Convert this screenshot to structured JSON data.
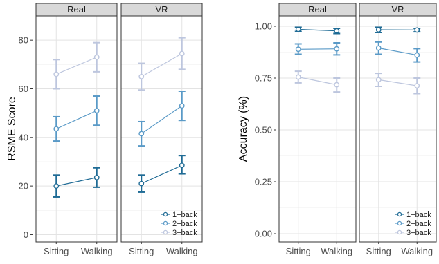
{
  "chart_data": [
    {
      "type": "line",
      "ylabel": "RSME Score",
      "xlabel": "",
      "ylim": [
        -3,
        90
      ],
      "yticks": [
        0,
        20,
        40,
        60,
        80
      ],
      "grid": true,
      "legend_position": "bottom-right",
      "categories": [
        "Sitting",
        "Walking"
      ],
      "panels": [
        {
          "name": "Real",
          "series": [
            {
              "name": "1−back",
              "color": "#1f6b95",
              "values": [
                20,
                23.5
              ],
              "err_low": [
                15.5,
                19.5
              ],
              "err_high": [
                24.5,
                27.5
              ]
            },
            {
              "name": "2−back",
              "color": "#5a9ac7",
              "values": [
                43.5,
                51
              ],
              "err_low": [
                38.5,
                45
              ],
              "err_high": [
                48.5,
                57
              ]
            },
            {
              "name": "3−back",
              "color": "#bdc6de",
              "values": [
                66,
                73
              ],
              "err_low": [
                60,
                67
              ],
              "err_high": [
                72,
                79
              ]
            }
          ]
        },
        {
          "name": "VR",
          "series": [
            {
              "name": "1−back",
              "color": "#1f6b95",
              "values": [
                21,
                28.5
              ],
              "err_low": [
                17.5,
                25
              ],
              "err_high": [
                24.5,
                32.5
              ]
            },
            {
              "name": "2−back",
              "color": "#5a9ac7",
              "values": [
                41.5,
                53
              ],
              "err_low": [
                36.5,
                47
              ],
              "err_high": [
                46.5,
                59
              ]
            },
            {
              "name": "3−back",
              "color": "#bdc6de",
              "values": [
                65,
                74.5
              ],
              "err_low": [
                59.5,
                68
              ],
              "err_high": [
                70.5,
                81
              ]
            }
          ]
        }
      ]
    },
    {
      "type": "line",
      "ylabel": "Accuracy (%)",
      "xlabel": "",
      "ylim": [
        -0.04,
        1.05
      ],
      "yticks": [
        0,
        0.25,
        0.5,
        0.75,
        1
      ],
      "ytick_labels": [
        "0.00",
        "0.25",
        "0.50",
        "0.75",
        "1.00"
      ],
      "grid": true,
      "legend_position": "bottom-right",
      "categories": [
        "Sitting",
        "Walking"
      ],
      "panels": [
        {
          "name": "Real",
          "series": [
            {
              "name": "1−back",
              "color": "#1f6b95",
              "values": [
                0.985,
                0.978
              ],
              "err_low": [
                0.975,
                0.965
              ],
              "err_high": [
                0.995,
                0.99
              ]
            },
            {
              "name": "2−back",
              "color": "#5a9ac7",
              "values": [
                0.889,
                0.891
              ],
              "err_low": [
                0.865,
                0.862
              ],
              "err_high": [
                0.915,
                0.92
              ]
            },
            {
              "name": "3−back",
              "color": "#bdc6de",
              "values": [
                0.755,
                0.718
              ],
              "err_low": [
                0.727,
                0.683
              ],
              "err_high": [
                0.783,
                0.75
              ]
            }
          ]
        },
        {
          "name": "VR",
          "series": [
            {
              "name": "1−back",
              "color": "#1f6b95",
              "values": [
                0.983,
                0.982
              ],
              "err_low": [
                0.97,
                0.973
              ],
              "err_high": [
                0.995,
                0.99
              ]
            },
            {
              "name": "2−back",
              "color": "#5a9ac7",
              "values": [
                0.895,
                0.861
              ],
              "err_low": [
                0.865,
                0.828
              ],
              "err_high": [
                0.924,
                0.892
              ]
            },
            {
              "name": "3−back",
              "color": "#bdc6de",
              "values": [
                0.742,
                0.713
              ],
              "err_low": [
                0.71,
                0.675
              ],
              "err_high": [
                0.773,
                0.75
              ]
            }
          ]
        }
      ]
    }
  ]
}
